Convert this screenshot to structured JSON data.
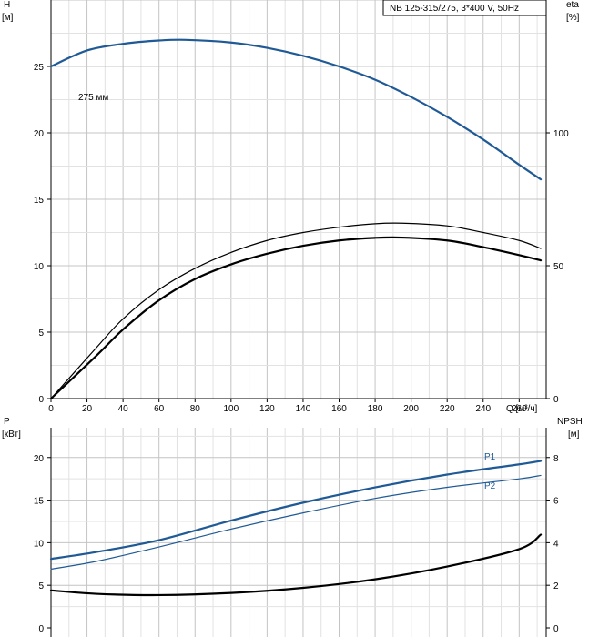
{
  "chart_data": [
    {
      "type": "line",
      "title": "NB 125-315/275, 3*400 V, 50Hz",
      "x": {
        "label": "Q [м³/ч]",
        "lim": [
          0,
          275
        ],
        "ticks": [
          0,
          20,
          40,
          60,
          80,
          100,
          120,
          140,
          160,
          180,
          200,
          220,
          240,
          260
        ]
      },
      "y_left": {
        "label_1": "H",
        "label_2": "[м]",
        "lim": [
          0,
          30
        ],
        "ticks": [
          0,
          5,
          10,
          15,
          20,
          25
        ]
      },
      "y_right": {
        "label_1": "eta",
        "label_2": "[%]",
        "lim": [
          0,
          150
        ],
        "ticks": [
          0,
          50,
          100
        ]
      },
      "annotations": [
        {
          "text": "275 мм",
          "x": 20,
          "y": 26.2
        }
      ],
      "series": [
        {
          "axis": "left",
          "color": "#1f5a96",
          "width": 2.2,
          "x": [
            0,
            20,
            40,
            60,
            75,
            100,
            120,
            140,
            160,
            180,
            200,
            220,
            240,
            260,
            272
          ],
          "y": [
            25.0,
            26.2,
            26.7,
            26.95,
            27.0,
            26.8,
            26.4,
            25.8,
            25.0,
            24.0,
            22.7,
            21.2,
            19.5,
            17.6,
            16.5
          ]
        },
        {
          "axis": "right",
          "color": "#000000",
          "width": 1.2,
          "x": [
            0,
            25,
            40,
            60,
            80,
            100,
            120,
            140,
            160,
            180,
            195,
            220,
            240,
            260,
            272
          ],
          "y": [
            0,
            19,
            30,
            41,
            49,
            55,
            59.5,
            62.5,
            64.5,
            65.8,
            66,
            65,
            62.5,
            59.5,
            56.5
          ]
        },
        {
          "axis": "right",
          "color": "#000000",
          "width": 2.2,
          "x": [
            0,
            25,
            40,
            60,
            80,
            100,
            120,
            140,
            160,
            180,
            195,
            220,
            240,
            260,
            272
          ],
          "y": [
            0,
            16,
            26,
            37,
            45,
            50.5,
            54.5,
            57.5,
            59.5,
            60.5,
            60.6,
            59.5,
            57,
            54,
            52
          ]
        }
      ]
    },
    {
      "type": "line",
      "y_left": {
        "label_1": "P",
        "label_2": "[кВт]",
        "lim": [
          0,
          23.5
        ],
        "ticks": [
          0,
          5,
          10,
          15,
          20
        ]
      },
      "y_right": {
        "label_1": "NPSH",
        "label_2": "[м]",
        "lim": [
          0,
          9.4
        ],
        "ticks": [
          0,
          2,
          4,
          6,
          8
        ]
      },
      "series": [
        {
          "name": "P1",
          "axis": "left",
          "color": "#1f5a96",
          "width": 2.2,
          "x": [
            0,
            25,
            60,
            100,
            140,
            180,
            220,
            260,
            272
          ],
          "y": [
            8.1,
            8.9,
            10.3,
            12.6,
            14.7,
            16.5,
            18.0,
            19.2,
            19.6
          ]
        },
        {
          "name": "P2",
          "axis": "left",
          "color": "#1f5a96",
          "width": 1.2,
          "x": [
            0,
            25,
            60,
            100,
            140,
            180,
            220,
            260,
            272
          ],
          "y": [
            6.9,
            7.8,
            9.5,
            11.6,
            13.5,
            15.2,
            16.5,
            17.5,
            17.9
          ]
        },
        {
          "name": "",
          "axis": "right",
          "color": "#000000",
          "width": 2.2,
          "x": [
            0,
            25,
            60,
            100,
            140,
            180,
            220,
            260,
            272
          ],
          "y": [
            1.76,
            1.6,
            1.54,
            1.64,
            1.88,
            2.28,
            2.88,
            3.7,
            4.38
          ]
        }
      ]
    }
  ]
}
